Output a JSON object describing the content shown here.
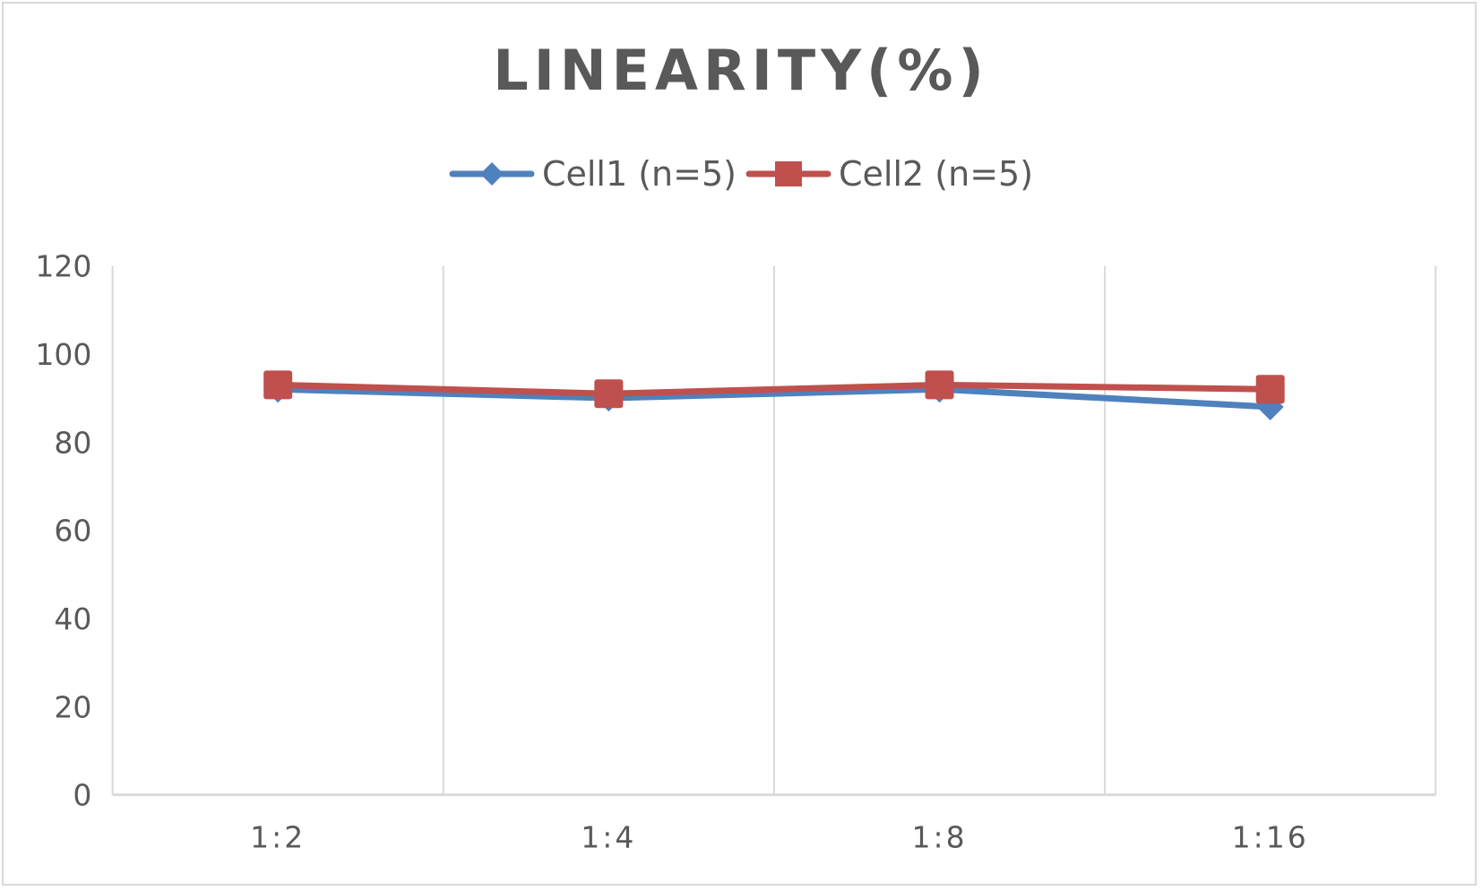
{
  "chart_data": {
    "type": "line",
    "title": "LINEARITY(%)",
    "xlabel": "",
    "ylabel": "",
    "categories": [
      "1:2",
      "1:4",
      "1:8",
      "1:16"
    ],
    "series": [
      {
        "name": "Cell1 (n=5)",
        "color": "#4f81bd",
        "marker": "diamond",
        "values": [
          92,
          90,
          92,
          88
        ]
      },
      {
        "name": "Cell2 (n=5)",
        "color": "#c0504d",
        "marker": "square",
        "values": [
          93,
          91,
          93,
          92
        ]
      }
    ],
    "ylim": [
      0,
      120
    ],
    "yticks": [
      0,
      20,
      40,
      60,
      80,
      100,
      120
    ],
    "grid": "vertical category separators",
    "legend_position": "top"
  },
  "legend": {
    "items": [
      {
        "label": "Cell1 (n=5)",
        "color": "#4f81bd"
      },
      {
        "label": "Cell2 (n=5)",
        "color": "#c0504d"
      }
    ]
  }
}
